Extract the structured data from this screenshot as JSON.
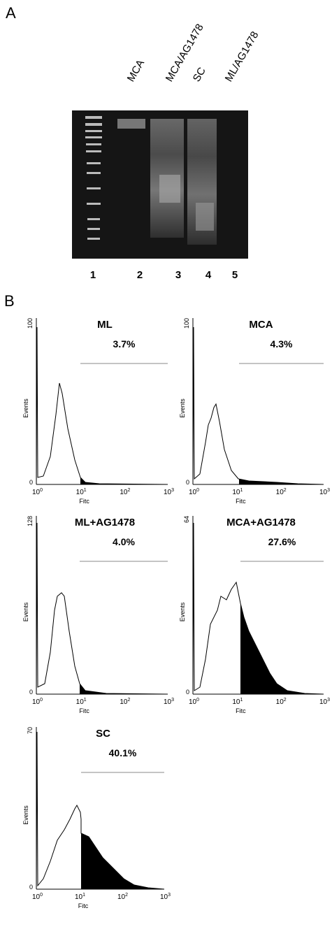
{
  "figure": {
    "panel_a": {
      "label": "A",
      "lanes": [
        "MCA",
        "MCA/AG1478",
        "SC",
        "ML/AG1478"
      ],
      "lane_numbers": [
        "1",
        "2",
        "3",
        "4",
        "5"
      ]
    },
    "panel_b": {
      "label": "B",
      "x_label": "Fitc",
      "y_label": "Events",
      "y_min": "0",
      "x_tick_base": "10",
      "x_tick_exponents": [
        "0",
        "1",
        "2",
        "3"
      ],
      "histograms": [
        {
          "title": "ML",
          "percent": "3.7%",
          "y_max": "100"
        },
        {
          "title": "MCA",
          "percent": "4.3%",
          "y_max": "100"
        },
        {
          "title": "ML+AG1478",
          "percent": "4.0%",
          "y_max": "128"
        },
        {
          "title": "MCA+AG1478",
          "percent": "27.6%",
          "y_max": "64"
        },
        {
          "title": "SC",
          "percent": "40.1%",
          "y_max": "70"
        }
      ]
    }
  }
}
